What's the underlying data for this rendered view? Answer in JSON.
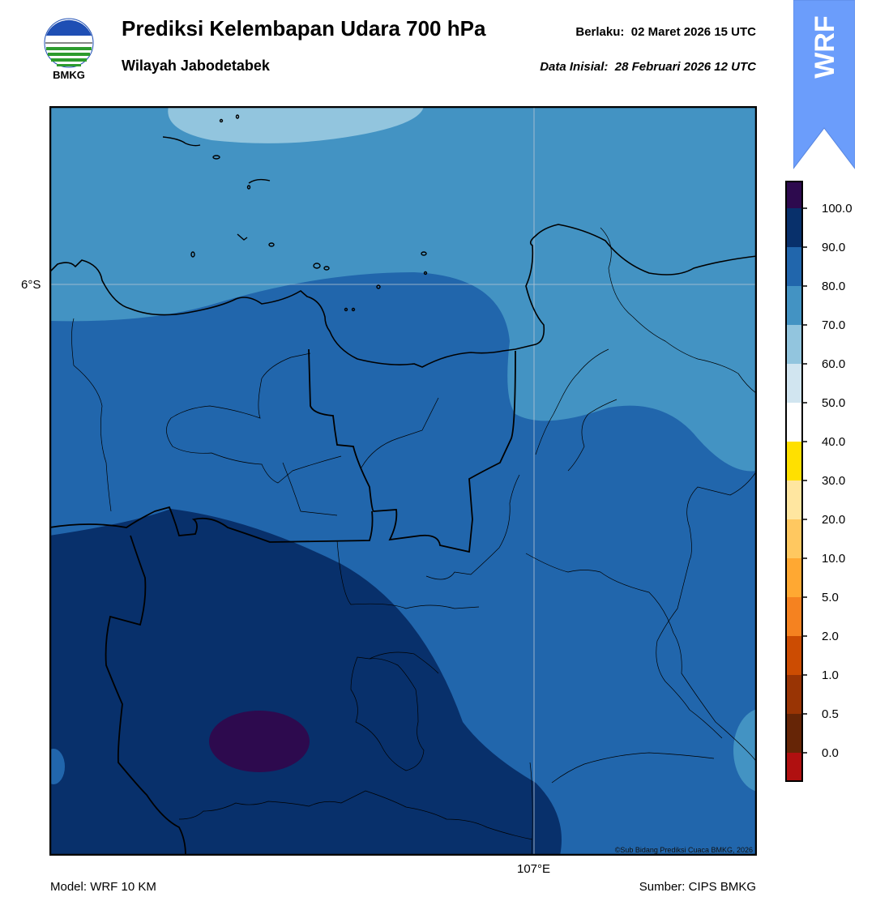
{
  "header": {
    "title": "Prediksi Kelembapan Udara 700 hPa",
    "subtitle": "Wilayah Jabodetabek",
    "valid_label": "Berlaku:",
    "valid_time": "02 Maret 2026 15 UTC",
    "init_label": "Data Inisial:",
    "init_time": "28 Februari 2026 12 UTC"
  },
  "logo": {
    "text": "BMKG"
  },
  "banner": {
    "text": "WRF",
    "color": "#6b9dfb"
  },
  "map": {
    "lat_label": "6°S",
    "lon_label": "107°E",
    "copyright": "©Sub Bidang Prediksi Cuaca BMKG, 2026"
  },
  "footer": {
    "model": "Model: WRF 10 KM",
    "source": "Sumber: CIPS BMKG"
  },
  "colorbar": {
    "labels": [
      "100.0",
      "90.0",
      "80.0",
      "70.0",
      "60.0",
      "50.0",
      "40.0",
      "30.0",
      "20.0",
      "10.0",
      "5.0",
      "2.0",
      "1.0",
      "0.5",
      "0.0"
    ],
    "colors": [
      "#2d0a4e",
      "#08306b",
      "#2166ac",
      "#4393c3",
      "#92c5de",
      "#d1e5f0",
      "#ffffff",
      "#ffe000",
      "#ffe6a0",
      "#ffc860",
      "#ffa832",
      "#f58220",
      "#cc4c02",
      "#993404",
      "#662506",
      "#b01010",
      "#e8342a"
    ]
  }
}
